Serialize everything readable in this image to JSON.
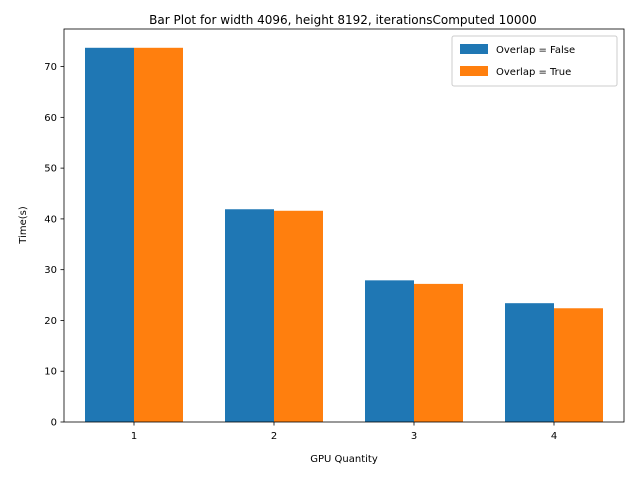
{
  "chart_data": {
    "type": "bar",
    "title": "Bar Plot for width 4096, height 8192, iterationsComputed 10000",
    "xlabel": "GPU Quantity",
    "ylabel": "Time(s)",
    "categories": [
      "1",
      "2",
      "3",
      "4"
    ],
    "series": [
      {
        "name": "Overlap = False",
        "color": "#1f77b4",
        "values": [
          73.7,
          41.9,
          27.9,
          23.4
        ]
      },
      {
        "name": "Overlap = True",
        "color": "#ff7f0e",
        "values": [
          73.7,
          41.6,
          27.2,
          22.4
        ]
      }
    ],
    "ylim": [
      0,
      77.4
    ],
    "yticks": [
      0,
      10,
      20,
      30,
      40,
      50,
      60,
      70
    ],
    "grid": false,
    "legend_position": "top-right"
  }
}
